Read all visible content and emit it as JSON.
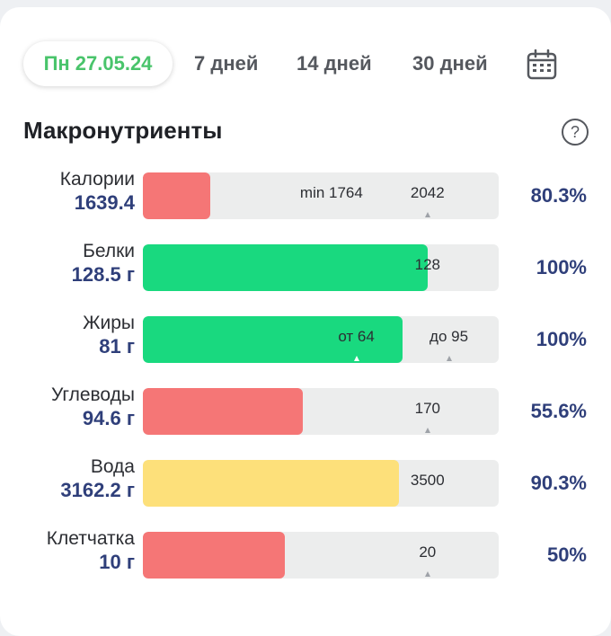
{
  "tabs": [
    {
      "label": "Пн 27.05.24",
      "active": true
    },
    {
      "label": "7 дней"
    },
    {
      "label": "14 дней"
    },
    {
      "label": "30 дней"
    }
  ],
  "icons": {
    "calendar": "calendar-icon",
    "help": "question-circle-icon"
  },
  "section": {
    "title": "Макронутриенты"
  },
  "colors": {
    "red": "#f57676",
    "green": "#19d97f",
    "yellow": "#fde07a",
    "accent": "#49c46b",
    "value_text": "#2f3f7a"
  },
  "rows": [
    {
      "label": "Калории",
      "value": "1639.4",
      "percent": "80.3%",
      "fill_fraction": 0.19,
      "color": "#f57676",
      "marks": [
        {
          "text": "min 1764"
        },
        {
          "text": "2042"
        }
      ]
    },
    {
      "label": "Белки",
      "value": "128.5 г",
      "percent": "100%",
      "fill_fraction": 0.8,
      "color": "#19d97f",
      "marks": [
        {
          "text": "128"
        }
      ]
    },
    {
      "label": "Жиры",
      "value": "81 г",
      "percent": "100%",
      "fill_fraction": 0.73,
      "color": "#19d97f",
      "marks": [
        {
          "text": "от 64"
        },
        {
          "text": "до 95"
        }
      ]
    },
    {
      "label": "Углеводы",
      "value": "94.6 г",
      "percent": "55.6%",
      "fill_fraction": 0.45,
      "color": "#f57676",
      "marks": [
        {
          "text": "170"
        }
      ]
    },
    {
      "label": "Вода",
      "value": "3162.2 г",
      "percent": "90.3%",
      "fill_fraction": 0.72,
      "color": "#fde07a",
      "marks": [
        {
          "text": "3500"
        }
      ]
    },
    {
      "label": "Клетчатка",
      "value": "10 г",
      "percent": "50%",
      "fill_fraction": 0.4,
      "color": "#f57676",
      "marks": [
        {
          "text": "20"
        }
      ]
    }
  ]
}
